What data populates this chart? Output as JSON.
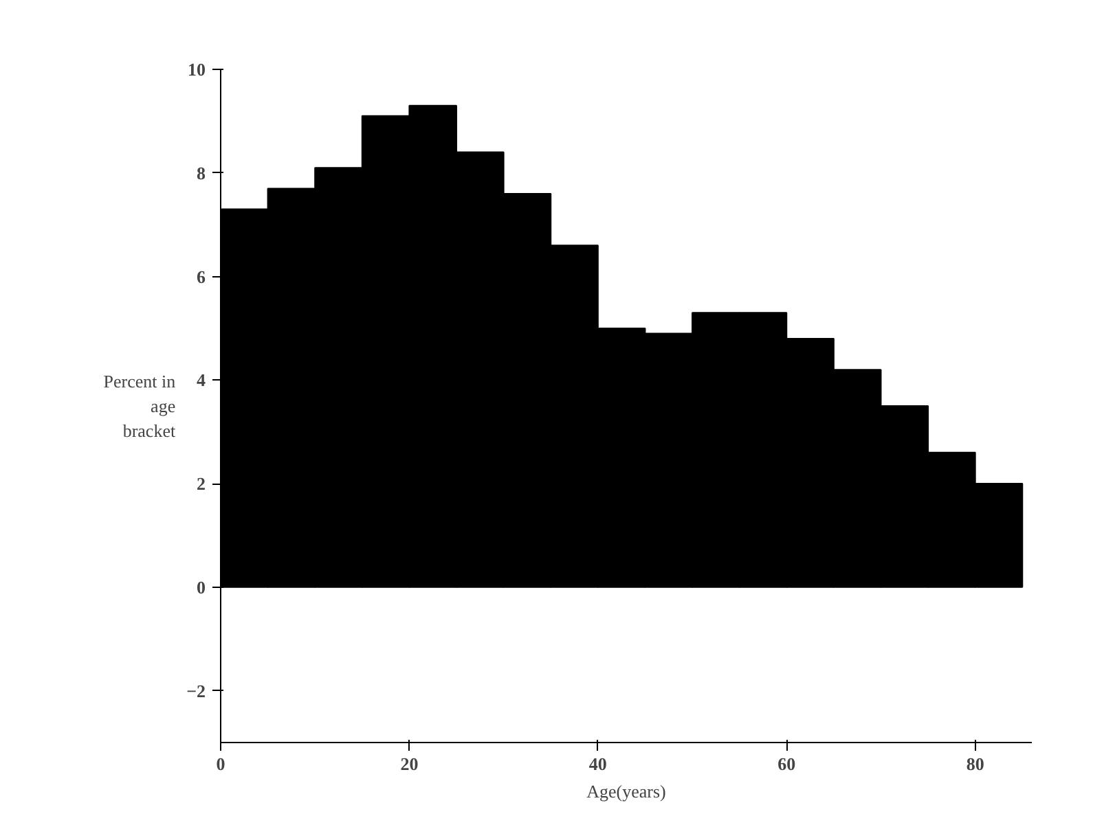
{
  "chart_data": {
    "type": "histogram",
    "xlabel": "Age(years)",
    "ylabel": "Percent in\nage\nbracket",
    "bins": [
      0,
      5,
      10,
      15,
      20,
      25,
      30,
      35,
      40,
      45,
      50,
      55,
      60,
      65,
      70,
      75,
      80,
      85
    ],
    "values": [
      7.3,
      7.7,
      8.1,
      9.1,
      9.3,
      8.4,
      7.6,
      6.6,
      5.0,
      4.9,
      5.3,
      5.3,
      4.8,
      4.2,
      3.5,
      2.6,
      2.0
    ],
    "color": "#000000",
    "xlim": [
      0,
      86
    ],
    "xticks": [
      0,
      20,
      40,
      60,
      80
    ],
    "ylim": [
      -3,
      10
    ],
    "yticks": [
      -2,
      0,
      2,
      4,
      6,
      8,
      10
    ],
    "grid": false
  }
}
